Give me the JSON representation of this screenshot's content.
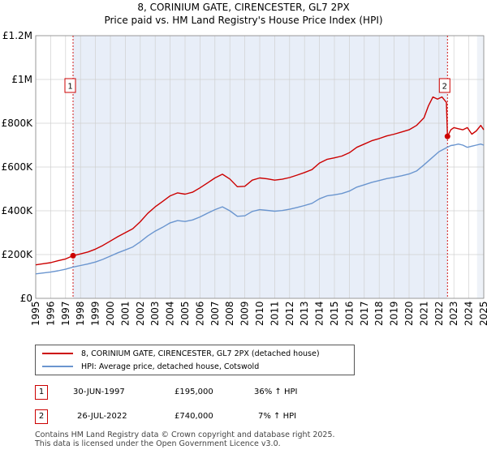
{
  "title": "8, CORINIUM GATE, CIRENCESTER, GL7 2PX",
  "subtitle": "Price paid vs. HM Land Registry's House Price Index (HPI)",
  "colors": {
    "property": "#cc0000",
    "hpi": "#6a95cf",
    "shade": "#e8eef8",
    "marker": "#cc0000"
  },
  "chart_data": {
    "type": "line",
    "xlim": [
      1995,
      2025
    ],
    "ylim": [
      0,
      1200000
    ],
    "yticks": [
      {
        "value": 0,
        "label": "£0"
      },
      {
        "value": 200000,
        "label": "£200K"
      },
      {
        "value": 400000,
        "label": "£400K"
      },
      {
        "value": 600000,
        "label": "£600K"
      },
      {
        "value": 800000,
        "label": "£800K"
      },
      {
        "value": 1000000,
        "label": "£1M"
      },
      {
        "value": 1200000,
        "label": "£1.2M"
      }
    ],
    "xticks": [
      "1995",
      "1996",
      "1997",
      "1998",
      "1999",
      "2000",
      "2001",
      "2002",
      "2003",
      "2004",
      "2005",
      "2006",
      "2007",
      "2008",
      "2009",
      "2010",
      "2011",
      "2012",
      "2013",
      "2014",
      "2015",
      "2016",
      "2017",
      "2018",
      "2019",
      "2020",
      "2021",
      "2022",
      "2023",
      "2024",
      "2025"
    ],
    "series": [
      {
        "name": "8, CORINIUM GATE, CIRENCESTER, GL7 2PX (detached house)",
        "x": [
          1995.0,
          1995.5,
          1996.0,
          1996.5,
          1997.0,
          1997.5,
          1998.0,
          1998.5,
          1999.0,
          1999.5,
          2000.0,
          2000.5,
          2001.0,
          2001.5,
          2002.0,
          2002.5,
          2003.0,
          2003.5,
          2004.0,
          2004.5,
          2005.0,
          2005.5,
          2006.0,
          2006.5,
          2007.0,
          2007.5,
          2008.0,
          2008.5,
          2009.0,
          2009.5,
          2010.0,
          2010.5,
          2011.0,
          2011.5,
          2012.0,
          2012.5,
          2013.0,
          2013.5,
          2014.0,
          2014.5,
          2015.0,
          2015.5,
          2016.0,
          2016.5,
          2017.0,
          2017.5,
          2018.0,
          2018.5,
          2019.0,
          2019.5,
          2020.0,
          2020.5,
          2021.0,
          2021.3,
          2021.6,
          2021.9,
          2022.2,
          2022.5,
          2022.57,
          2022.8,
          2023.0,
          2023.3,
          2023.6,
          2023.9,
          2024.2,
          2024.5,
          2024.8,
          2025.0
        ],
        "y": [
          153000,
          158000,
          163000,
          172000,
          180000,
          195000,
          203000,
          212000,
          225000,
          242000,
          262000,
          282000,
          300000,
          318000,
          350000,
          388000,
          418000,
          443000,
          468000,
          482000,
          476000,
          485000,
          505000,
          527000,
          550000,
          567000,
          545000,
          510000,
          512000,
          540000,
          550000,
          546000,
          540000,
          544000,
          552000,
          563000,
          575000,
          588000,
          618000,
          635000,
          642000,
          650000,
          665000,
          690000,
          705000,
          720000,
          730000,
          742000,
          750000,
          760000,
          770000,
          790000,
          825000,
          880000,
          920000,
          910000,
          920000,
          895000,
          740000,
          770000,
          780000,
          775000,
          770000,
          780000,
          750000,
          765000,
          790000,
          770000
        ]
      },
      {
        "name": "HPI: Average price, detached house, Cotswold",
        "x": [
          1995.0,
          1995.5,
          1996.0,
          1996.5,
          1997.0,
          1997.5,
          1998.0,
          1998.5,
          1999.0,
          1999.5,
          2000.0,
          2000.5,
          2001.0,
          2001.5,
          2002.0,
          2002.5,
          2003.0,
          2003.5,
          2004.0,
          2004.5,
          2005.0,
          2005.5,
          2006.0,
          2006.5,
          2007.0,
          2007.5,
          2008.0,
          2008.5,
          2009.0,
          2009.5,
          2010.0,
          2010.5,
          2011.0,
          2011.5,
          2012.0,
          2012.5,
          2013.0,
          2013.5,
          2014.0,
          2014.5,
          2015.0,
          2015.5,
          2016.0,
          2016.5,
          2017.0,
          2017.5,
          2018.0,
          2018.5,
          2019.0,
          2019.5,
          2020.0,
          2020.5,
          2021.0,
          2021.5,
          2022.0,
          2022.5,
          2022.8,
          2023.0,
          2023.3,
          2023.6,
          2023.9,
          2024.2,
          2024.5,
          2024.8,
          2025.0
        ],
        "y": [
          112000,
          116000,
          120000,
          126000,
          133000,
          143000,
          150000,
          157000,
          166000,
          178000,
          193000,
          208000,
          221000,
          235000,
          258000,
          285000,
          307000,
          325000,
          345000,
          355000,
          351000,
          358000,
          372000,
          389000,
          405000,
          418000,
          400000,
          375000,
          377000,
          397000,
          405000,
          402000,
          398000,
          401000,
          407000,
          415000,
          424000,
          434000,
          455000,
          468000,
          473000,
          479000,
          490000,
          508000,
          519000,
          530000,
          538000,
          547000,
          553000,
          560000,
          568000,
          582000,
          610000,
          640000,
          670000,
          688000,
          698000,
          700000,
          705000,
          700000,
          690000,
          695000,
          700000,
          705000,
          700000
        ]
      }
    ],
    "annotations": [
      {
        "label": "1",
        "x": 1997.5,
        "y": 195000
      },
      {
        "label": "2",
        "x": 2022.57,
        "y": 740000
      }
    ]
  },
  "legend": {
    "property_label": "8, CORINIUM GATE, CIRENCESTER, GL7 2PX (detached house)",
    "hpi_label": "HPI: Average price, detached house, Cotswold"
  },
  "transactions": [
    {
      "num": "1",
      "date": "30-JUN-1997",
      "price": "£195,000",
      "hpi": "36% ↑ HPI"
    },
    {
      "num": "2",
      "date": "26-JUL-2022",
      "price": "£740,000",
      "hpi": "7% ↑ HPI"
    }
  ],
  "footer": {
    "line1": "Contains HM Land Registry data © Crown copyright and database right 2025.",
    "line2": "This data is licensed under the Open Government Licence v3.0."
  }
}
